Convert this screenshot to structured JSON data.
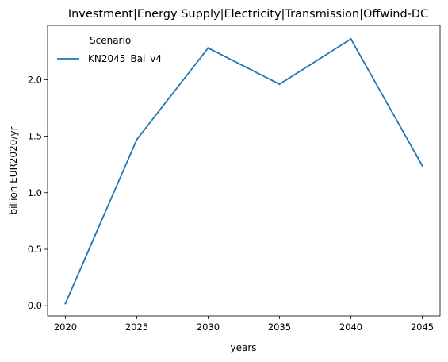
{
  "chart_data": {
    "type": "line",
    "title": "Investment|Energy Supply|Electricity|Transmission|Offwind-DC",
    "xlabel": "years",
    "ylabel": "billion EUR2020/yr",
    "x": [
      2020,
      2025,
      2030,
      2035,
      2040,
      2045
    ],
    "xticks": [
      2020,
      2025,
      2030,
      2035,
      2040,
      2045
    ],
    "yticks": [
      0.0,
      0.5,
      1.0,
      1.5,
      2.0
    ],
    "ytick_labels": [
      "0.0",
      "0.5",
      "1.0",
      "1.5",
      "2.0"
    ],
    "xlim": [
      2018.75,
      2046.25
    ],
    "ylim": [
      -0.09,
      2.48
    ],
    "grid": false,
    "legend": {
      "title": "Scenario",
      "placement": "top-left"
    },
    "series": [
      {
        "name": "KN2045_Bal_v4",
        "color": "#1f77b4",
        "values": [
          0.02,
          1.47,
          2.28,
          1.96,
          2.36,
          1.24
        ]
      }
    ]
  }
}
